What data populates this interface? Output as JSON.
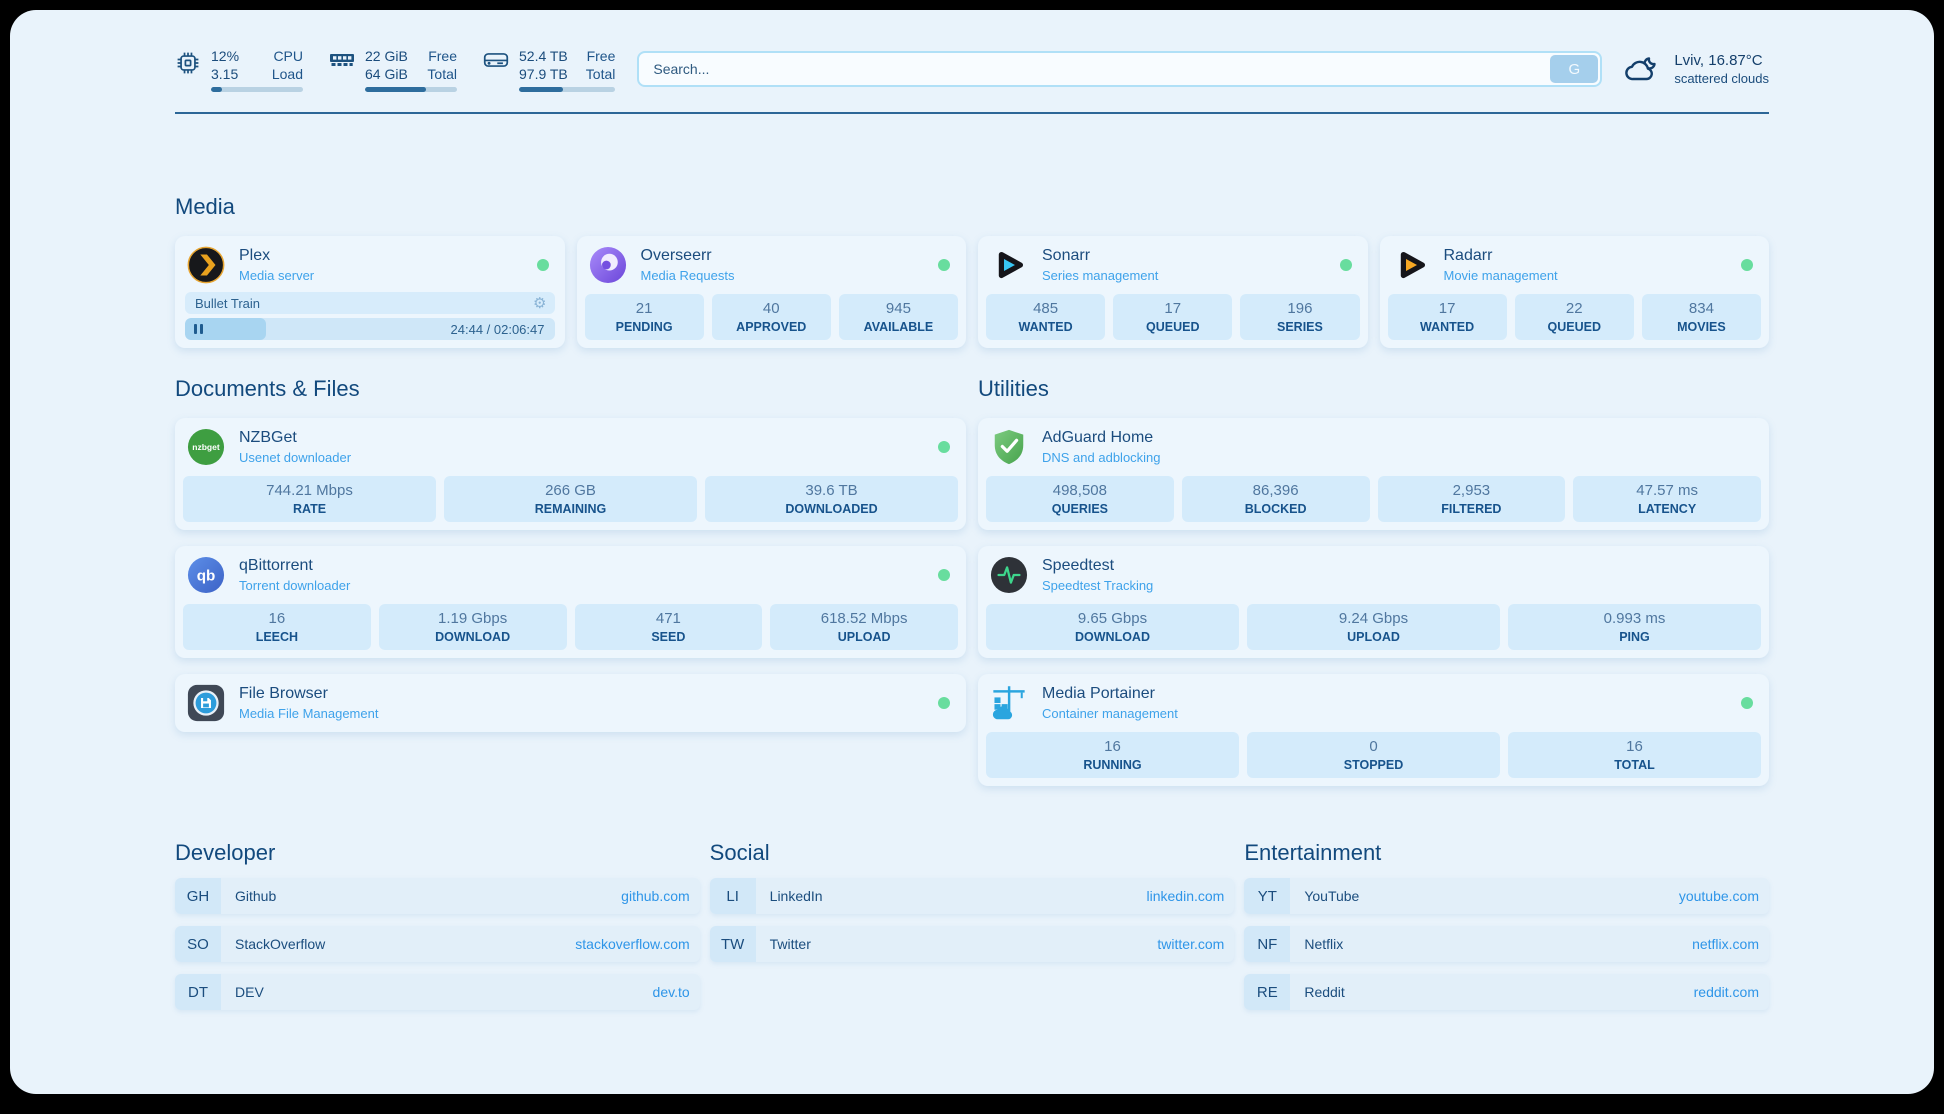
{
  "system": {
    "cpu": {
      "value1": "12%",
      "value2": "3.15",
      "label1": "CPU",
      "label2": "Load",
      "progress_percent": 12
    },
    "memory": {
      "value1": "22 GiB",
      "value2": "64 GiB",
      "label1": "Free",
      "label2": "Total",
      "progress_percent": 66
    },
    "disk": {
      "value1": "52.4 TB",
      "value2": "97.9 TB",
      "label1": "Free",
      "label2": "Total",
      "progress_percent": 46
    }
  },
  "search": {
    "placeholder": "Search...",
    "provider_button": "G"
  },
  "weather": {
    "location": "Lviv, 16.87°C",
    "condition": "scattered clouds"
  },
  "sections": {
    "media": "Media",
    "documents": "Documents & Files",
    "utilities": "Utilities"
  },
  "apps": {
    "plex": {
      "name": "Plex",
      "description": "Media server",
      "now_playing": "Bullet Train",
      "time_display": "24:44 / 02:06:47",
      "progress_percent": 19.5
    },
    "overseerr": {
      "name": "Overseerr",
      "description": "Media Requests",
      "stats": [
        {
          "value": "21",
          "label": "PENDING"
        },
        {
          "value": "40",
          "label": "APPROVED"
        },
        {
          "value": "945",
          "label": "AVAILABLE"
        }
      ]
    },
    "sonarr": {
      "name": "Sonarr",
      "description": "Series management",
      "stats": [
        {
          "value": "485",
          "label": "WANTED"
        },
        {
          "value": "17",
          "label": "QUEUED"
        },
        {
          "value": "196",
          "label": "SERIES"
        }
      ]
    },
    "radarr": {
      "name": "Radarr",
      "description": "Movie management",
      "stats": [
        {
          "value": "17",
          "label": "WANTED"
        },
        {
          "value": "22",
          "label": "QUEUED"
        },
        {
          "value": "834",
          "label": "MOVIES"
        }
      ]
    },
    "nzbget": {
      "name": "NZBGet",
      "description": "Usenet downloader",
      "icon_text": "nzbget",
      "stats": [
        {
          "value": "744.21 Mbps",
          "label": "RATE"
        },
        {
          "value": "266 GB",
          "label": "REMAINING"
        },
        {
          "value": "39.6 TB",
          "label": "DOWNLOADED"
        }
      ]
    },
    "qbittorrent": {
      "name": "qBittorrent",
      "description": "Torrent downloader",
      "icon_text": "qb",
      "stats": [
        {
          "value": "16",
          "label": "LEECH"
        },
        {
          "value": "1.19 Gbps",
          "label": "DOWNLOAD"
        },
        {
          "value": "471",
          "label": "SEED"
        },
        {
          "value": "618.52 Mbps",
          "label": "UPLOAD"
        }
      ]
    },
    "filebrowser": {
      "name": "File Browser",
      "description": "Media File Management"
    },
    "adguard": {
      "name": "AdGuard Home",
      "description": "DNS and adblocking",
      "stats": [
        {
          "value": "498,508",
          "label": "QUERIES"
        },
        {
          "value": "86,396",
          "label": "BLOCKED"
        },
        {
          "value": "2,953",
          "label": "FILTERED"
        },
        {
          "value": "47.57 ms",
          "label": "LATENCY"
        }
      ]
    },
    "speedtest": {
      "name": "Speedtest",
      "description": "Speedtest Tracking",
      "stats": [
        {
          "value": "9.65 Gbps",
          "label": "DOWNLOAD"
        },
        {
          "value": "9.24 Gbps",
          "label": "UPLOAD"
        },
        {
          "value": "0.993 ms",
          "label": "PING"
        }
      ]
    },
    "portainer": {
      "name": "Media Portainer",
      "description": "Container management",
      "stats": [
        {
          "value": "16",
          "label": "RUNNING"
        },
        {
          "value": "0",
          "label": "STOPPED"
        },
        {
          "value": "16",
          "label": "TOTAL"
        }
      ]
    }
  },
  "bookmarks": {
    "developer": {
      "title": "Developer",
      "links": [
        {
          "abbr": "GH",
          "name": "Github",
          "url": "github.com"
        },
        {
          "abbr": "SO",
          "name": "StackOverflow",
          "url": "stackoverflow.com"
        },
        {
          "abbr": "DT",
          "name": "DEV",
          "url": "dev.to"
        }
      ]
    },
    "social": {
      "title": "Social",
      "links": [
        {
          "abbr": "LI",
          "name": "LinkedIn",
          "url": "linkedin.com"
        },
        {
          "abbr": "TW",
          "name": "Twitter",
          "url": "twitter.com"
        }
      ]
    },
    "entertainment": {
      "title": "Entertainment",
      "links": [
        {
          "abbr": "YT",
          "name": "YouTube",
          "url": "youtube.com"
        },
        {
          "abbr": "NF",
          "name": "Netflix",
          "url": "netflix.com"
        },
        {
          "abbr": "RE",
          "name": "Reddit",
          "url": "reddit.com"
        }
      ]
    }
  },
  "colors": {
    "status_online": "#68dd9e",
    "accent_blue": "#3ea2ea",
    "text_primary": "#17497c",
    "divider": "#2c6697"
  }
}
